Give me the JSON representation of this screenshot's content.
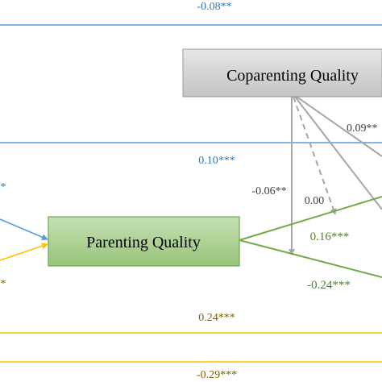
{
  "diagram": {
    "nodes": {
      "coparenting": {
        "label": "Coparenting Quality"
      },
      "parenting": {
        "label": "Parenting Quality"
      }
    },
    "coefficients": {
      "top_blue": "-0.08**",
      "mid_blue": "0.10***",
      "partial_blue_left": "*",
      "partial_gold_left": "*",
      "gray_solid_left": "-0.06**",
      "gray_dashed": "0.00",
      "gray_solid_right": "0.09**",
      "green_upper": "0.16***",
      "green_lower": "-0.24***",
      "gold_lower": "0.24***",
      "gold_bottom": "-0.29***"
    },
    "colors": {
      "blue": "#5b9bd5",
      "blue_text": "#2e75b6",
      "gold": "#ffc000",
      "gold_text": "#7f6000",
      "green": "#70ad47",
      "green_text": "#548235",
      "gray": "#a6a6a6",
      "gray_text": "#404040",
      "node_gray_fill": "#d0d0d0",
      "node_green_fill": "#a9d18e"
    }
  }
}
